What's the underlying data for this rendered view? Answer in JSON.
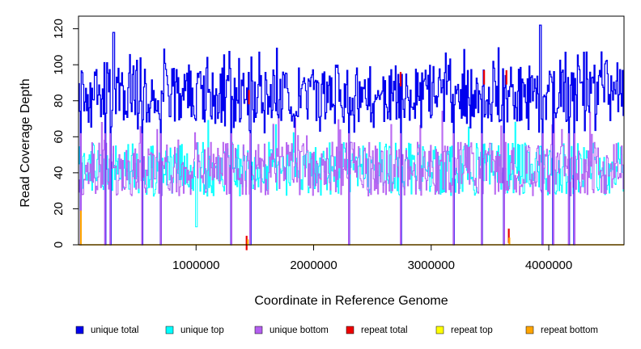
{
  "chart_data": {
    "type": "line",
    "title": "",
    "xlabel": "Coordinate in Reference Genome",
    "ylabel": "Read Coverage Depth",
    "xlim": [
      0,
      4640000
    ],
    "ylim": [
      0,
      127
    ],
    "x_ticks": [
      1000000,
      2000000,
      3000000,
      4000000
    ],
    "x_tick_labels": [
      "1000000",
      "2000000",
      "3000000",
      "4000000"
    ],
    "y_ticks": [
      0,
      20,
      40,
      60,
      80,
      100,
      120
    ],
    "y_tick_labels": [
      "0",
      "20",
      "40",
      "60",
      "80",
      "100",
      "120"
    ],
    "grid": false,
    "legend_position": "bottom",
    "series": [
      {
        "name": "unique total",
        "color": "#0000ee",
        "description": "mean ~85, fluctuating ~65-110, peaks near 118 (x~300000) and 122 (x~3930000); drops to 0 at repeat regions"
      },
      {
        "name": "unique top",
        "color": "#00ffff",
        "description": "mean ~42, fluctuating ~25-65; dips to ~10 near x~1000000"
      },
      {
        "name": "unique bottom",
        "color": "#b45ff0",
        "description": "mean ~42, fluctuating ~25-70"
      },
      {
        "name": "repeat total",
        "color": "#ee0000",
        "description": "near 0 except spikes near x~1450000 (~86), x~2740000 (~96), x~3450000 (~97), x~3640000 (~97), x~3660000 (~9), x~1430000 (~5)"
      },
      {
        "name": "repeat top",
        "color": "#ffff00",
        "description": "near 0"
      },
      {
        "name": "repeat bottom",
        "color": "#ffa500",
        "description": "near 0 except spikes near x~20000 (~19), x~1440000 (~3), x~3665000 (~4)"
      }
    ],
    "drop_regions_x": [
      20000,
      225000,
      270000,
      540000,
      700000,
      1300000,
      1460000,
      2300000,
      2740000,
      3190000,
      3430000,
      3620000,
      3950000,
      4040000,
      4170000,
      4220000
    ],
    "peaks": [
      {
        "x": 300000,
        "y": 118
      },
      {
        "x": 3930000,
        "y": 122
      }
    ]
  }
}
